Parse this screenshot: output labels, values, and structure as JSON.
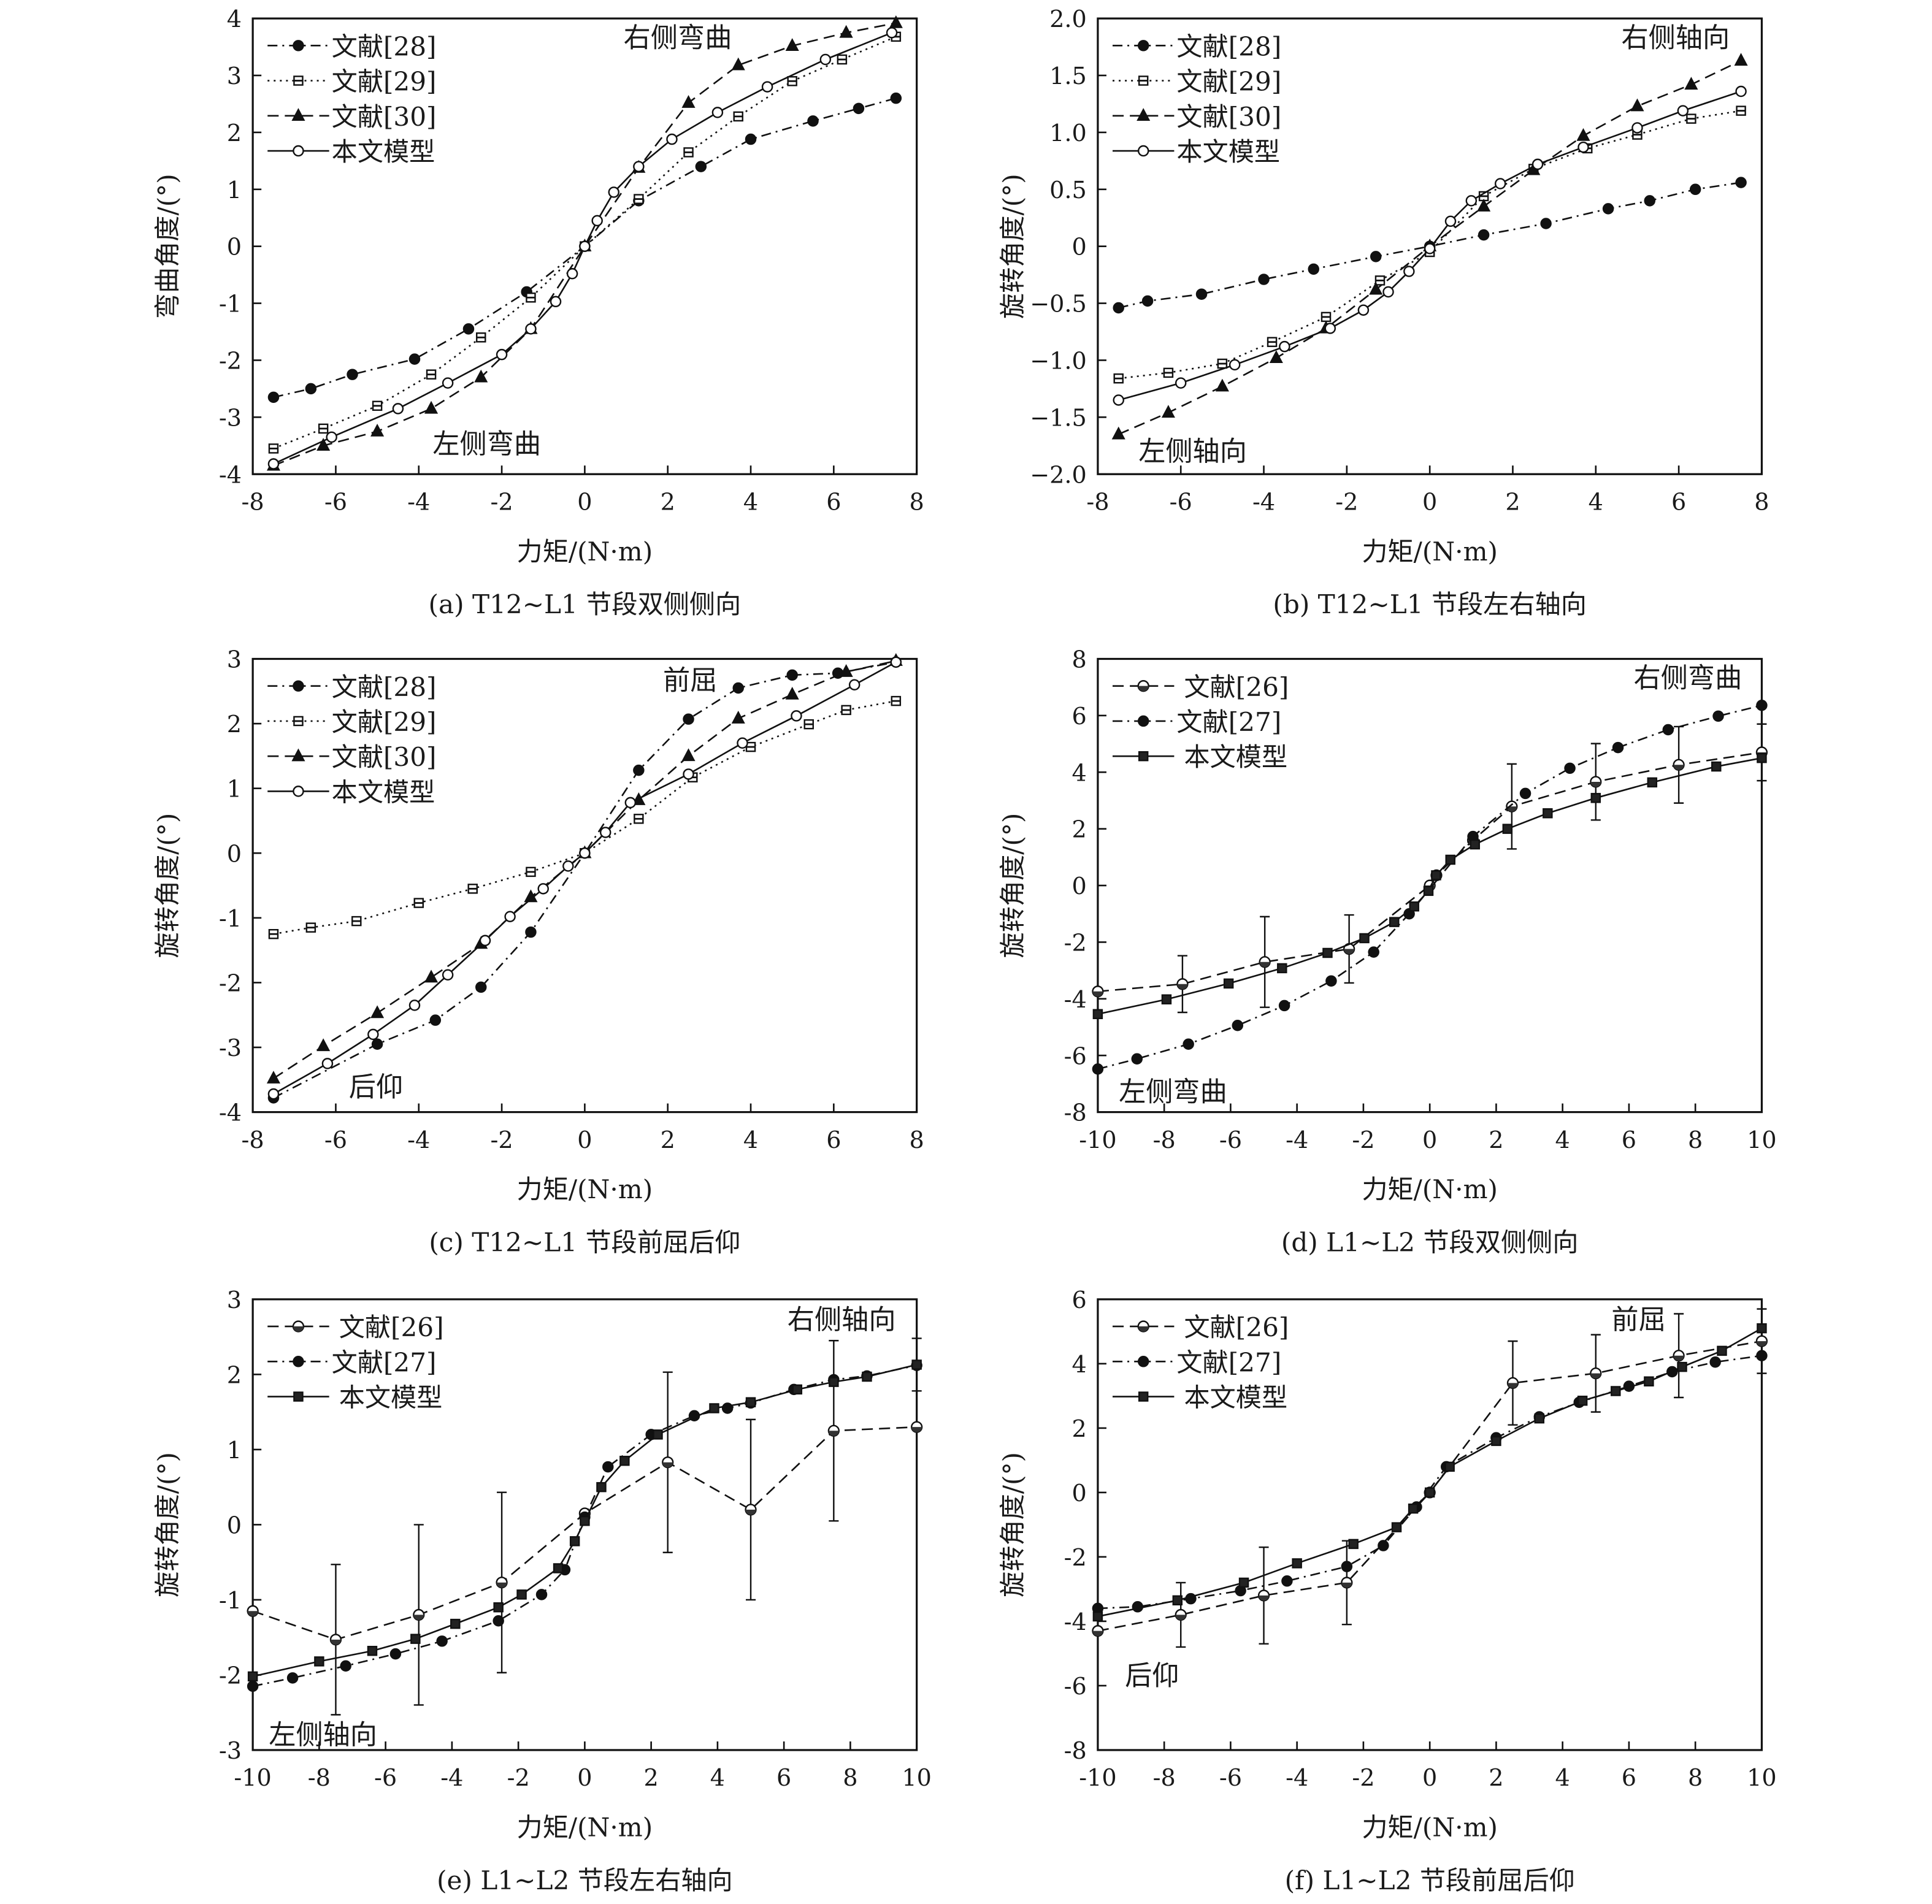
{
  "chart_data": [
    {
      "type": "line",
      "caption": "(a) T12~L1 节段双侧侧向",
      "xlabel": "力矩/(N·m)",
      "ylabel": "弯曲角度/(°)",
      "xlim": [
        -8,
        8
      ],
      "ylim": [
        -4,
        4
      ],
      "xticks": [
        -8,
        -6,
        -4,
        -2,
        0,
        2,
        4,
        6,
        8
      ],
      "yticks": [
        -4,
        -3,
        -2,
        -1,
        0,
        1,
        2,
        3,
        4
      ],
      "annotations": [
        "右侧弯曲",
        "左侧弯曲"
      ],
      "legend": "top-left",
      "series": [
        {
          "name": "文献[28]",
          "style": "dashdot",
          "marker": "dot",
          "x": [
            -7.5,
            -6.6,
            -5.6,
            -4.1,
            -2.8,
            -1.4,
            0,
            1.3,
            2.8,
            4,
            5.5,
            6.6,
            7.5
          ],
          "y": [
            -2.65,
            -2.5,
            -2.25,
            -1.98,
            -1.45,
            -0.8,
            0,
            0.8,
            1.4,
            1.88,
            2.2,
            2.42,
            2.6
          ]
        },
        {
          "name": "文献[29]",
          "style": "dotted",
          "marker": "square",
          "x": [
            -7.5,
            -6.3,
            -5,
            -3.7,
            -2.5,
            -1.3,
            0,
            1.3,
            2.5,
            3.7,
            5,
            6.2,
            7.5
          ],
          "y": [
            -3.55,
            -3.2,
            -2.8,
            -2.25,
            -1.6,
            -0.9,
            0,
            0.83,
            1.65,
            2.28,
            2.9,
            3.28,
            3.68
          ]
        },
        {
          "name": "文献[30]",
          "style": "dashed",
          "marker": "triangle",
          "x": [
            -7.5,
            -6.3,
            -5,
            -3.7,
            -2.5,
            -1.3,
            0,
            1.3,
            2.5,
            3.7,
            5,
            6.3,
            7.5
          ],
          "y": [
            -3.85,
            -3.5,
            -3.25,
            -2.85,
            -2.3,
            -1.45,
            0,
            1.38,
            2.52,
            3.18,
            3.52,
            3.75,
            3.92
          ]
        },
        {
          "name": "本文模型",
          "style": "solid",
          "marker": "circle",
          "x": [
            -7.5,
            -6.1,
            -4.5,
            -3.3,
            -2.0,
            -1.3,
            -0.7,
            -0.3,
            0,
            0.3,
            0.7,
            1.3,
            2.1,
            3.2,
            4.4,
            5.8,
            7.4
          ],
          "y": [
            -3.82,
            -3.35,
            -2.85,
            -2.4,
            -1.9,
            -1.45,
            -0.97,
            -0.48,
            0,
            0.45,
            0.95,
            1.4,
            1.88,
            2.35,
            2.8,
            3.28,
            3.75
          ]
        }
      ]
    },
    {
      "type": "line",
      "caption": "(b) T12~L1 节段左右轴向",
      "xlabel": "力矩/(N·m)",
      "ylabel": "旋转角度/(°)",
      "xlim": [
        -8,
        8
      ],
      "ylim": [
        -2,
        2
      ],
      "xticks": [
        -8,
        -6,
        -4,
        -2,
        0,
        2,
        4,
        6,
        8
      ],
      "yticks": [
        -2.0,
        -1.5,
        -1.0,
        -0.5,
        0,
        0.5,
        1.0,
        1.5,
        2.0
      ],
      "ytick_labels": [
        "−2.0",
        "−1.5",
        "−1.0",
        "−0.5",
        "0",
        "0.5",
        "1.0",
        "1.5",
        "2.0"
      ],
      "annotations": [
        "右侧轴向",
        "左侧轴向"
      ],
      "legend": "top-left",
      "series": [
        {
          "name": "文献[28]",
          "style": "dashdot",
          "marker": "dot",
          "x": [
            -7.5,
            -6.8,
            -5.5,
            -4,
            -2.8,
            -1.3,
            0,
            1.3,
            2.8,
            4.3,
            5.3,
            6.4,
            7.5
          ],
          "y": [
            -0.54,
            -0.48,
            -0.42,
            -0.29,
            -0.2,
            -0.09,
            0,
            0.1,
            0.2,
            0.33,
            0.4,
            0.5,
            0.56
          ]
        },
        {
          "name": "文献[29]",
          "style": "dotted",
          "marker": "square",
          "x": [
            -7.5,
            -6.3,
            -5,
            -3.8,
            -2.5,
            -1.2,
            0,
            1.3,
            2.5,
            3.8,
            5,
            6.3,
            7.5
          ],
          "y": [
            -1.16,
            -1.11,
            -1.03,
            -0.84,
            -0.62,
            -0.3,
            -0.05,
            0.44,
            0.68,
            0.86,
            0.98,
            1.12,
            1.19
          ]
        },
        {
          "name": "文献[30]",
          "style": "dashed",
          "marker": "triangle",
          "x": [
            -7.5,
            -6.3,
            -5,
            -3.7,
            -2.5,
            -1.3,
            0,
            1.3,
            2.5,
            3.7,
            5,
            6.3,
            7.5
          ],
          "y": [
            -1.65,
            -1.46,
            -1.23,
            -0.98,
            -0.72,
            -0.38,
            0,
            0.35,
            0.67,
            0.97,
            1.23,
            1.42,
            1.63
          ]
        },
        {
          "name": "本文模型",
          "style": "solid",
          "marker": "circle",
          "x": [
            -7.5,
            -6,
            -4.7,
            -3.5,
            -2.4,
            -1.6,
            -1,
            -0.5,
            0,
            0.5,
            1,
            1.7,
            2.6,
            3.7,
            5,
            6.1,
            7.5
          ],
          "y": [
            -1.35,
            -1.2,
            -1.04,
            -0.88,
            -0.72,
            -0.56,
            -0.4,
            -0.22,
            -0.02,
            0.22,
            0.4,
            0.55,
            0.72,
            0.87,
            1.04,
            1.19,
            1.36
          ]
        }
      ]
    },
    {
      "type": "line",
      "caption": "(c) T12~L1 节段前屈后仰",
      "xlabel": "力矩/(N·m)",
      "ylabel": "旋转角度/(°)",
      "xlim": [
        -8,
        8
      ],
      "ylim": [
        -4,
        3
      ],
      "xticks": [
        -8,
        -6,
        -4,
        -2,
        0,
        2,
        4,
        6,
        8
      ],
      "yticks": [
        -4,
        -3,
        -2,
        -1,
        0,
        1,
        2,
        3
      ],
      "annotations": [
        "前屈",
        "后仰"
      ],
      "legend": "top-left",
      "series": [
        {
          "name": "文献[28]",
          "style": "dashdot",
          "marker": "dot",
          "x": [
            -7.5,
            -5,
            -3.6,
            -2.5,
            -1.3,
            0,
            1.3,
            2.5,
            3.7,
            5,
            6.1,
            7.5
          ],
          "y": [
            -3.78,
            -2.95,
            -2.58,
            -2.07,
            -1.22,
            0,
            1.28,
            2.07,
            2.55,
            2.75,
            2.78,
            2.95
          ]
        },
        {
          "name": "文献[29]",
          "style": "dotted",
          "marker": "square",
          "x": [
            -7.5,
            -6.6,
            -5.5,
            -4,
            -2.7,
            -1.3,
            0,
            1.3,
            2.6,
            4,
            5.4,
            6.3,
            7.5
          ],
          "y": [
            -1.25,
            -1.15,
            -1.05,
            -0.77,
            -0.55,
            -0.29,
            0,
            0.53,
            1.17,
            1.64,
            1.99,
            2.21,
            2.35
          ]
        },
        {
          "name": "文献[30]",
          "style": "dashed",
          "marker": "triangle",
          "x": [
            -7.5,
            -6.3,
            -5,
            -3.7,
            -2.5,
            -1.3,
            0,
            1.3,
            2.5,
            3.7,
            5,
            6.3,
            7.5
          ],
          "y": [
            -3.48,
            -2.98,
            -2.47,
            -1.92,
            -1.4,
            -0.68,
            0,
            0.82,
            1.5,
            2.08,
            2.45,
            2.8,
            2.97
          ]
        },
        {
          "name": "本文模型",
          "style": "solid",
          "marker": "circle",
          "x": [
            -7.5,
            -6.2,
            -5.1,
            -4.1,
            -3.3,
            -2.4,
            -1.8,
            -1,
            -0.4,
            0,
            0.5,
            1.1,
            2.5,
            3.8,
            5.1,
            6.5,
            7.5
          ],
          "y": [
            -3.72,
            -3.25,
            -2.8,
            -2.35,
            -1.88,
            -1.35,
            -0.98,
            -0.55,
            -0.2,
            0,
            0.32,
            0.78,
            1.22,
            1.7,
            2.12,
            2.6,
            2.95
          ]
        }
      ]
    },
    {
      "type": "line",
      "caption": "(d) L1~L2 节段双侧侧向",
      "xlabel": "力矩/(N·m)",
      "ylabel": "旋转角度/(°)",
      "xlim": [
        -10,
        10
      ],
      "ylim": [
        -8,
        8
      ],
      "xticks": [
        -10,
        -8,
        -6,
        -4,
        -2,
        0,
        2,
        4,
        6,
        8,
        10
      ],
      "yticks": [
        -8,
        -6,
        -4,
        -2,
        0,
        2,
        4,
        6,
        8
      ],
      "annotations": [
        "右侧弯曲",
        "左侧弯曲"
      ],
      "legend": "top-left",
      "series": [
        {
          "name": "文献[26]",
          "style": "dashed",
          "marker": "half",
          "x": [
            -10,
            -7.45,
            -4.97,
            -2.43,
            0,
            0.2,
            1.3,
            2.47,
            5,
            7.5,
            10
          ],
          "y": [
            -3.74,
            -3.48,
            -2.7,
            -2.24,
            0,
            0.36,
            1.6,
            2.79,
            3.66,
            4.26,
            4.7
          ],
          "err": [
            0,
            1.0,
            1.6,
            1.2,
            0,
            0,
            0,
            1.5,
            1.35,
            1.35,
            1.0
          ]
        },
        {
          "name": "文献[27]",
          "style": "dashdot",
          "marker": "dot",
          "x": [
            -10,
            -8.82,
            -7.27,
            -5.79,
            -4.38,
            -2.97,
            -1.69,
            -0.62,
            1.3,
            2.88,
            4.22,
            5.67,
            7.18,
            8.69,
            10
          ],
          "y": [
            -6.48,
            -6.12,
            -5.6,
            -4.94,
            -4.24,
            -3.37,
            -2.35,
            -1.0,
            1.73,
            3.25,
            4.14,
            4.87,
            5.5,
            5.98,
            6.36
          ]
        },
        {
          "name": "本文模型",
          "style": "solid",
          "marker": "fsquare",
          "x": [
            -10,
            -7.93,
            -6.06,
            -4.45,
            -3.08,
            -1.97,
            -1.07,
            -0.47,
            -0.04,
            0.19,
            0.62,
            1.36,
            2.34,
            3.55,
            5.0,
            6.7,
            8.63,
            10
          ],
          "y": [
            -4.54,
            -4.02,
            -3.46,
            -2.92,
            -2.38,
            -1.86,
            -1.29,
            -0.74,
            -0.19,
            0.36,
            0.91,
            1.45,
            2.0,
            2.55,
            3.09,
            3.64,
            4.2,
            4.5
          ]
        }
      ]
    },
    {
      "type": "line",
      "caption": "(e) L1~L2 节段左右轴向",
      "xlabel": "力矩/(N·m)",
      "ylabel": "旋转角度/(°)",
      "xlim": [
        -10,
        10
      ],
      "ylim": [
        -3,
        3
      ],
      "xticks": [
        -10,
        -8,
        -6,
        -4,
        -2,
        0,
        2,
        4,
        6,
        8,
        10
      ],
      "yticks": [
        -3,
        -2,
        -1,
        0,
        1,
        2,
        3
      ],
      "annotations": [
        "右侧轴向",
        "左侧轴向"
      ],
      "legend": "top-left",
      "series": [
        {
          "name": "文献[26]",
          "style": "dashed",
          "marker": "half",
          "x": [
            -10,
            -7.5,
            -5,
            -2.5,
            0,
            2.5,
            5,
            7.5,
            10
          ],
          "y": [
            -1.15,
            -1.53,
            -1.2,
            -0.77,
            0.15,
            0.83,
            0.2,
            1.25,
            1.3
          ],
          "err": [
            0,
            1.0,
            1.2,
            1.2,
            0,
            1.2,
            1.2,
            1.2,
            0
          ]
        },
        {
          "name": "文献[27]",
          "style": "dashdot",
          "marker": "dot",
          "x": [
            -10,
            -8.8,
            -7.2,
            -5.7,
            -4.3,
            -2.6,
            -1.3,
            -0.6,
            0,
            0.7,
            2,
            3.3,
            4.3,
            5,
            6.3,
            7.5,
            8.5,
            10
          ],
          "y": [
            -2.15,
            -2.04,
            -1.88,
            -1.72,
            -1.55,
            -1.28,
            -0.93,
            -0.6,
            0.1,
            0.77,
            1.2,
            1.45,
            1.55,
            1.62,
            1.8,
            1.93,
            1.98,
            2.12
          ]
        },
        {
          "name": "本文模型",
          "style": "solid",
          "marker": "fsquare",
          "x": [
            -10,
            -8,
            -6.4,
            -5.1,
            -3.9,
            -2.6,
            -1.9,
            -0.8,
            -0.3,
            0,
            0.5,
            1.2,
            2.2,
            3.9,
            5,
            6.4,
            7.5,
            8.5,
            10
          ],
          "y": [
            -2.02,
            -1.82,
            -1.68,
            -1.52,
            -1.32,
            -1.1,
            -0.93,
            -0.58,
            -0.22,
            0.05,
            0.5,
            0.85,
            1.2,
            1.55,
            1.63,
            1.8,
            1.9,
            1.97,
            2.13
          ],
          "err": [
            0,
            0,
            0,
            0,
            0,
            0,
            0,
            0,
            0,
            0,
            0,
            0,
            0,
            0,
            0,
            0,
            0,
            0,
            0.35
          ]
        }
      ]
    },
    {
      "type": "line",
      "caption": "(f) L1~L2 节段前屈后仰",
      "xlabel": "力矩/(N·m)",
      "ylabel": "旋转角度/(°)",
      "xlim": [
        -10,
        10
      ],
      "ylim": [
        -8,
        6
      ],
      "xticks": [
        -10,
        -8,
        -6,
        -4,
        -2,
        0,
        2,
        4,
        6,
        8,
        10
      ],
      "yticks": [
        -8,
        -6,
        -4,
        -2,
        0,
        2,
        4,
        6
      ],
      "annotations": [
        "前屈",
        "后仰"
      ],
      "legend": "top-left",
      "series": [
        {
          "name": "文献[26]",
          "style": "dashed",
          "marker": "half",
          "x": [
            -10,
            -7.5,
            -5,
            -2.5,
            0,
            2.5,
            5,
            7.5,
            10
          ],
          "y": [
            -4.3,
            -3.8,
            -3.2,
            -2.8,
            0,
            3.4,
            3.7,
            4.25,
            4.7
          ],
          "err": [
            0,
            1.0,
            1.5,
            1.3,
            0,
            1.3,
            1.2,
            1.3,
            1.0
          ]
        },
        {
          "name": "文献[27]",
          "style": "dashdot",
          "marker": "dot",
          "x": [
            -10,
            -8.8,
            -7.2,
            -5.7,
            -4.3,
            -2.5,
            -1.4,
            -0.4,
            0.5,
            2,
            3.3,
            4.5,
            6,
            7.3,
            8.6,
            10
          ],
          "y": [
            -3.6,
            -3.55,
            -3.3,
            -3.05,
            -2.75,
            -2.3,
            -1.65,
            -0.45,
            0.8,
            1.7,
            2.35,
            2.8,
            3.3,
            3.75,
            4.05,
            4.25
          ]
        },
        {
          "name": "本文模型",
          "style": "solid",
          "marker": "fsquare",
          "x": [
            -10,
            -7.6,
            -5.6,
            -4,
            -2.3,
            -1,
            -0.5,
            0,
            0.6,
            2,
            3.3,
            4.6,
            5.6,
            6.6,
            7.6,
            8.8,
            10
          ],
          "y": [
            -3.85,
            -3.35,
            -2.8,
            -2.2,
            -1.6,
            -1.08,
            -0.5,
            0,
            0.8,
            1.6,
            2.3,
            2.85,
            3.15,
            3.45,
            3.9,
            4.4,
            5.1
          ]
        }
      ]
    }
  ]
}
